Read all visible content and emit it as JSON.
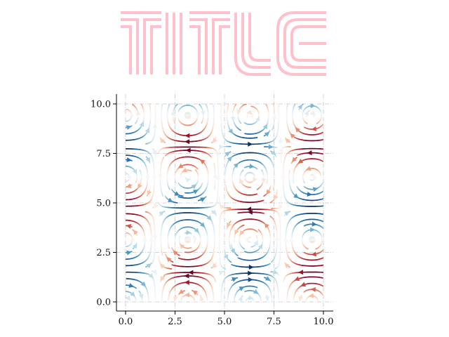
{
  "chart_data": {
    "type": "streamplot",
    "title": "TITLE",
    "title_color": "#FFC0CB",
    "xlabel": "",
    "ylabel": "",
    "xlim": [
      -0.4,
      10.4
    ],
    "ylim": [
      -0.5,
      10.5
    ],
    "x_ticks": [
      0.0,
      2.5,
      5.0,
      7.5,
      10.0
    ],
    "y_ticks": [
      0.0,
      2.5,
      5.0,
      7.5,
      10.0
    ],
    "x_tick_labels": [
      "0.0",
      "2.5",
      "5.0",
      "7.5",
      "10.0"
    ],
    "y_tick_labels": [
      "0.0",
      "2.5",
      "5.0",
      "7.5",
      "10.0"
    ],
    "grid": true,
    "grid_style": "dash-dot",
    "aspect": "equal",
    "spines": "left-bottom",
    "colormap": "RdBu",
    "colormap_stops": [
      "#67001f",
      "#b2182b",
      "#d6604d",
      "#f4a582",
      "#fddbc7",
      "#f7f7f7",
      "#d1e5f0",
      "#92c5de",
      "#4393c3",
      "#2166ac",
      "#053061"
    ],
    "field": {
      "u": "cos(x) * sin(y)",
      "v": "-sin(x) * cos(y)",
      "color": "u",
      "x_range": [
        0,
        10
      ],
      "y_range": [
        0,
        10
      ]
    }
  }
}
